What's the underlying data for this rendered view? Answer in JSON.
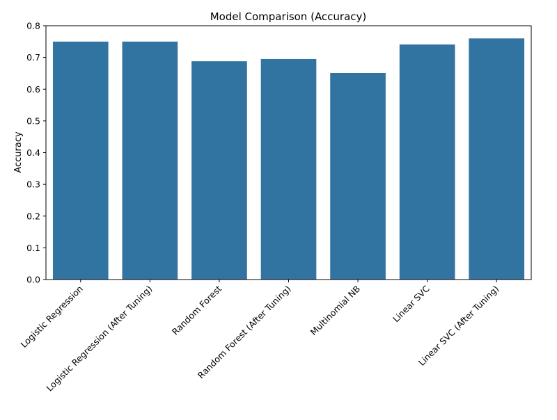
{
  "chart_data": {
    "type": "bar",
    "title": "Model Comparison (Accuracy)",
    "xlabel": "",
    "ylabel": "Accuracy",
    "categories": [
      "Logistic Regression",
      "Logistic Regression (After Tuning)",
      "Random Forest",
      "Random Forest (After Tuning)",
      "Multinomial NB",
      "Linear SVC",
      "Linear SVC (After Tuning)"
    ],
    "values": [
      0.75,
      0.75,
      0.688,
      0.695,
      0.651,
      0.741,
      0.76
    ],
    "ylim": [
      0,
      0.8
    ],
    "yticks": [
      "0.0",
      "0.1",
      "0.2",
      "0.3",
      "0.4",
      "0.5",
      "0.6",
      "0.7",
      "0.8"
    ],
    "grid": false,
    "bar_color": "#3274a1",
    "x_tick_rotation_deg": 45
  }
}
